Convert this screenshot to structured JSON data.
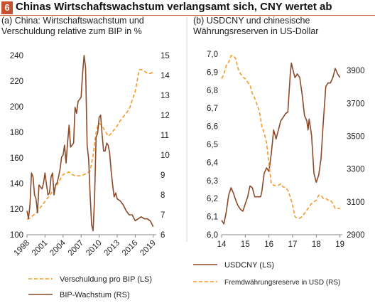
{
  "figure": {
    "number": "6",
    "title": "Chinas Wirtschaftswachstum verlangsamt sich, CNY wertet ab"
  },
  "colors": {
    "accent": "#c8502d",
    "solid_series": "#8b4a2a",
    "dashed_series": "#f39a2c",
    "axis": "#888888"
  },
  "chart_data": [
    {
      "type": "line",
      "panel_label": "(a) China: Wirtschaftswachstum und Verschuldung relative zum BIP in %",
      "x_ticks": [
        "1998",
        "2001",
        "2004",
        "2007",
        "2010",
        "2013",
        "2016",
        "2019"
      ],
      "xlim": [
        1998,
        2019.5
      ],
      "y_left": {
        "lim": [
          100,
          240
        ],
        "ticks": [
          "100",
          "120",
          "140",
          "160",
          "180",
          "200",
          "220",
          "240"
        ]
      },
      "y_right": {
        "lim": [
          6,
          15
        ],
        "ticks": [
          "6",
          "7",
          "8",
          "9",
          "10",
          "11",
          "12",
          "13",
          "14",
          "15"
        ]
      },
      "grid": false,
      "legend_position": "bottom",
      "series": [
        {
          "name": "Verschuldung pro BIP (LS)",
          "axis": "left",
          "style": "dashed",
          "x": [
            1998,
            1998.5,
            1999,
            1999.5,
            2000,
            2000.5,
            2001,
            2001.5,
            2002,
            2002.5,
            2003,
            2003.5,
            2004,
            2004.5,
            2005,
            2005.5,
            2006,
            2006.5,
            2007,
            2007.5,
            2008,
            2008.5,
            2009,
            2009.25,
            2009.5,
            2009.75,
            2010,
            2010.5,
            2011,
            2011.5,
            2012,
            2012.5,
            2013,
            2013.5,
            2014,
            2014.5,
            2015,
            2015.5,
            2016,
            2016.25,
            2016.5,
            2016.75,
            2017,
            2017.5,
            2018,
            2018.5,
            2019
          ],
          "values": [
            112,
            113,
            115,
            117,
            120,
            123,
            126,
            129,
            132,
            136,
            139,
            143,
            147,
            148,
            149,
            147,
            146,
            146,
            146,
            147,
            148,
            150,
            162,
            172,
            180,
            185,
            187,
            185,
            181,
            177,
            179,
            182,
            185,
            189,
            192,
            195,
            198,
            205,
            212,
            218,
            225,
            229,
            229,
            228,
            226,
            226,
            227
          ]
        },
        {
          "name": "BIP-Wachstum (RS)",
          "axis": "right",
          "style": "solid",
          "x": [
            1998,
            1998.25,
            1998.5,
            1998.75,
            1999,
            1999.25,
            1999.5,
            1999.75,
            2000,
            2000.25,
            2000.5,
            2000.75,
            2001,
            2001.25,
            2001.5,
            2001.75,
            2002,
            2002.25,
            2002.5,
            2002.75,
            2003,
            2003.25,
            2003.5,
            2003.75,
            2004,
            2004.25,
            2004.5,
            2004.75,
            2005,
            2005.25,
            2005.5,
            2005.75,
            2006,
            2006.25,
            2006.5,
            2006.75,
            2007,
            2007.25,
            2007.5,
            2007.75,
            2008,
            2008.25,
            2008.5,
            2008.75,
            2009,
            2009.25,
            2009.5,
            2009.75,
            2010,
            2010.25,
            2010.5,
            2010.75,
            2011,
            2011.25,
            2011.5,
            2011.75,
            2012,
            2012.25,
            2012.5,
            2012.75,
            2013,
            2013.5,
            2014,
            2014.5,
            2015,
            2015.5,
            2016,
            2016.5,
            2017,
            2017.5,
            2018,
            2018.5,
            2019
          ],
          "values": [
            7.2,
            6.8,
            7.5,
            9.1,
            8.9,
            8.0,
            7.8,
            7.1,
            8.5,
            8.4,
            8.3,
            8.6,
            9.1,
            8.5,
            8.0,
            8.1,
            8.9,
            9.1,
            8.0,
            8.5,
            8.6,
            8.9,
            9.3,
            9.9,
            10.0,
            10.5,
            9.6,
            10.6,
            11.5,
            10.4,
            10.5,
            10.6,
            12.4,
            12.1,
            12.7,
            12.8,
            12.9,
            14.1,
            15.0,
            14.4,
            10.5,
            9.8,
            8.0,
            6.5,
            6.2,
            7.9,
            10.9,
            11.1,
            11.9,
            12.0,
            11.0,
            10.2,
            10.2,
            10.6,
            10.5,
            10.1,
            9.2,
            8.5,
            7.9,
            8.1,
            7.8,
            7.7,
            7.5,
            7.2,
            7.0,
            7.0,
            6.7,
            6.8,
            6.9,
            6.8,
            6.8,
            6.7,
            6.4
          ]
        }
      ]
    },
    {
      "type": "line",
      "panel_label": "(b) USDCNY und chinesische Währungsreserven in US-Dollar",
      "x_ticks": [
        "14",
        "15",
        "16",
        "17",
        "18",
        "19"
      ],
      "xlim": [
        2014,
        2019.1
      ],
      "y_left": {
        "lim": [
          6.0,
          7.0
        ],
        "ticks": [
          "6,0",
          "6,1",
          "6,2",
          "6,3",
          "6,4",
          "6,5",
          "6,6",
          "6,7",
          "6,8",
          "6,9",
          "7,0"
        ]
      },
      "y_right": {
        "lim": [
          2900,
          4000
        ],
        "ticks": [
          "2900",
          "3100",
          "3300",
          "3500",
          "3700",
          "3900"
        ]
      },
      "grid": false,
      "legend_position": "bottom",
      "series": [
        {
          "name": "USDCNY (LS)",
          "axis": "left",
          "style": "solid",
          "x": [
            2014,
            2014.1,
            2014.2,
            2014.3,
            2014.4,
            2014.5,
            2014.6,
            2014.7,
            2014.8,
            2014.9,
            2015,
            2015.1,
            2015.2,
            2015.3,
            2015.4,
            2015.5,
            2015.6,
            2015.65,
            2015.7,
            2015.8,
            2015.9,
            2016,
            2016.1,
            2016.2,
            2016.3,
            2016.4,
            2016.5,
            2016.6,
            2016.7,
            2016.8,
            2016.9,
            2016.95,
            2017,
            2017.1,
            2017.2,
            2017.3,
            2017.4,
            2017.5,
            2017.6,
            2017.65,
            2017.7,
            2017.8,
            2017.9,
            2018,
            2018.1,
            2018.2,
            2018.3,
            2018.4,
            2018.5,
            2018.6,
            2018.7,
            2018.8,
            2018.9,
            2019
          ],
          "values": [
            6.08,
            6.06,
            6.13,
            6.22,
            6.26,
            6.23,
            6.19,
            6.16,
            6.14,
            6.13,
            6.17,
            6.21,
            6.27,
            6.26,
            6.21,
            6.21,
            6.21,
            6.21,
            6.24,
            6.34,
            6.37,
            6.35,
            6.45,
            6.58,
            6.53,
            6.58,
            6.63,
            6.65,
            6.67,
            6.68,
            6.89,
            6.95,
            6.92,
            6.87,
            6.89,
            6.87,
            6.78,
            6.66,
            6.63,
            6.58,
            6.64,
            6.55,
            6.34,
            6.29,
            6.33,
            6.42,
            6.63,
            6.82,
            6.84,
            6.84,
            6.87,
            6.92,
            6.89,
            6.87
          ]
        },
        {
          "name": "Fremdwährungsreserve in USD (RS)",
          "axis": "right",
          "style": "dashed",
          "x": [
            2014,
            2014.1,
            2014.2,
            2014.3,
            2014.4,
            2014.5,
            2014.6,
            2014.7,
            2014.8,
            2014.9,
            2015,
            2015.1,
            2015.2,
            2015.3,
            2015.4,
            2015.5,
            2015.6,
            2015.7,
            2015.8,
            2015.9,
            2016,
            2016.1,
            2016.2,
            2016.3,
            2016.4,
            2016.5,
            2016.6,
            2016.7,
            2016.8,
            2016.9,
            2017,
            2017.1,
            2017.2,
            2017.3,
            2017.4,
            2017.5,
            2017.6,
            2017.7,
            2017.8,
            2017.9,
            2018,
            2018.1,
            2018.2,
            2018.3,
            2018.4,
            2018.5,
            2018.6,
            2018.7,
            2018.8,
            2018.9,
            2019
          ],
          "values": [
            3850,
            3880,
            3930,
            3950,
            3990,
            3990,
            3970,
            3910,
            3880,
            3860,
            3850,
            3830,
            3810,
            3760,
            3730,
            3690,
            3650,
            3560,
            3520,
            3460,
            3330,
            3210,
            3200,
            3200,
            3200,
            3210,
            3190,
            3190,
            3170,
            3130,
            3080,
            3010,
            3000,
            3000,
            3010,
            3030,
            3050,
            3070,
            3090,
            3100,
            3110,
            3140,
            3140,
            3120,
            3120,
            3110,
            3110,
            3090,
            3060,
            3060,
            3060
          ]
        }
      ]
    }
  ]
}
